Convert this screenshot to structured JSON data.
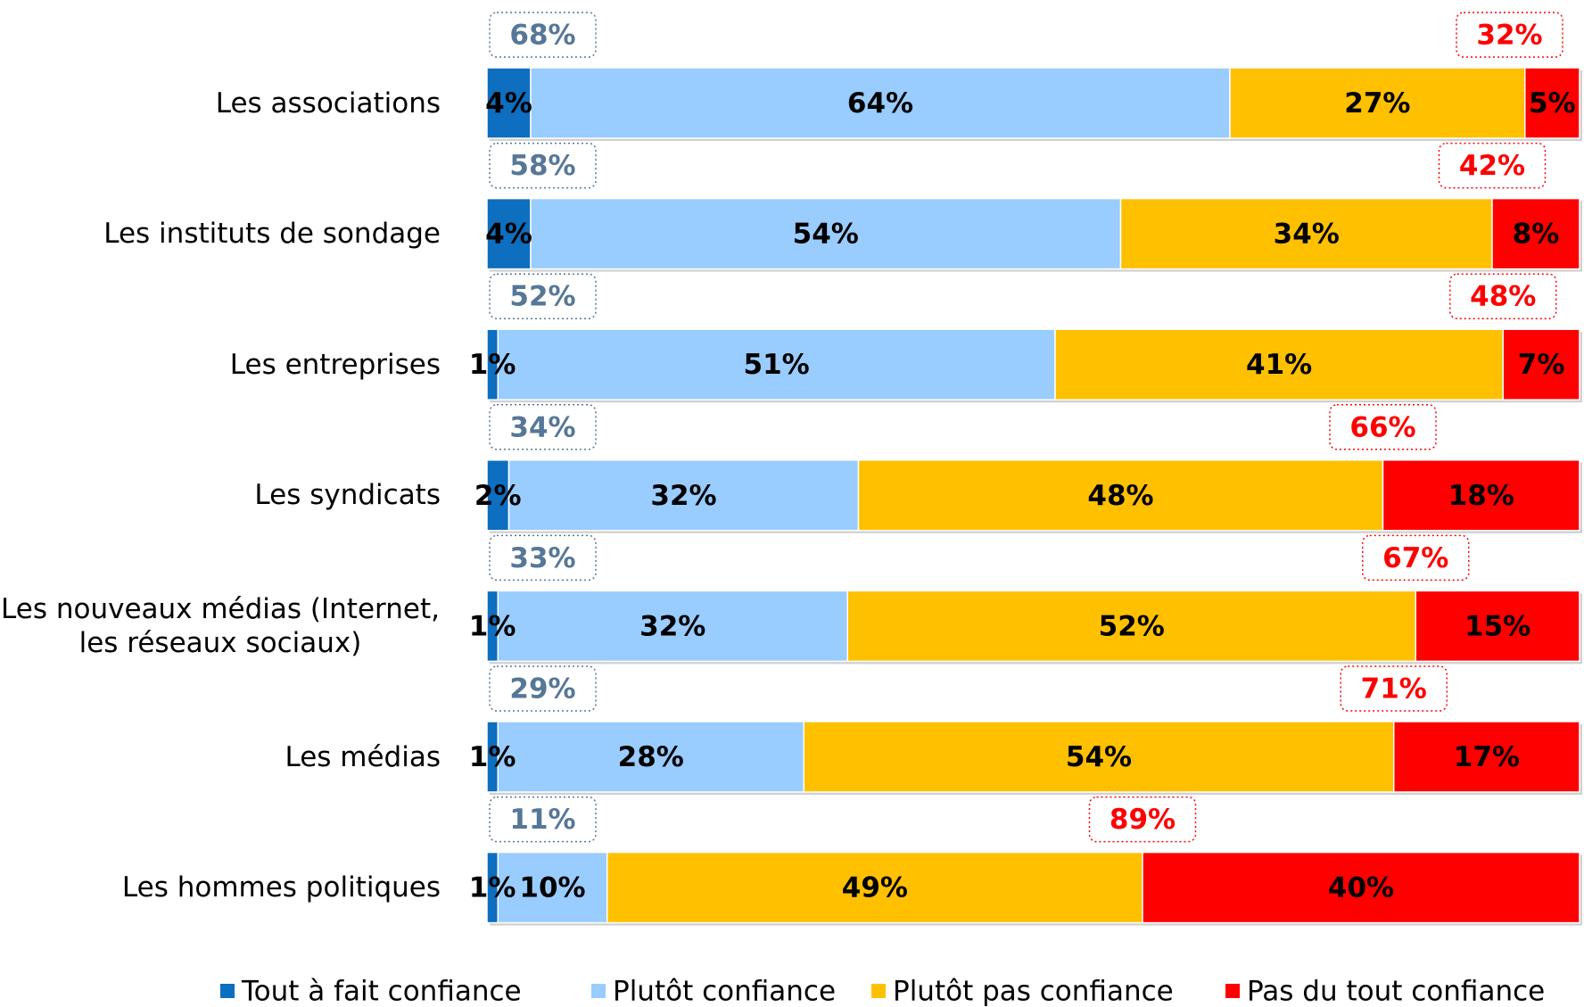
{
  "chart_data": {
    "type": "stacked_bar_horizontal",
    "categories": [
      "Les associations",
      "Les instituts de sondage",
      "Les entreprises",
      "Les syndicats",
      "Les nouveaux médias (Internet, les réseaux sociaux)",
      "Les médias",
      "Les hommes politiques"
    ],
    "series": [
      {
        "name": "Tout à fait confiance",
        "color": "#0e6ebf",
        "values": [
          4,
          4,
          1,
          2,
          1,
          1,
          1
        ],
        "value_labels": [
          "4%",
          "4%",
          "1%",
          "2%",
          "1%",
          "1%",
          "1%"
        ]
      },
      {
        "name": "Plutôt confiance",
        "color": "#99ccff",
        "values": [
          64,
          54,
          51,
          32,
          32,
          28,
          10
        ],
        "value_labels": [
          "64%",
          "54%",
          "51%",
          "32%",
          "32%",
          "28%",
          "10%"
        ]
      },
      {
        "name": "Plutôt pas confiance",
        "color": "#ffc000",
        "values": [
          27,
          34,
          41,
          48,
          52,
          54,
          49
        ],
        "value_labels": [
          "27%",
          "34%",
          "41%",
          "48%",
          "52%",
          "54%",
          "49%"
        ]
      },
      {
        "name": "Pas du tout confiance",
        "color": "#ff0000",
        "values": [
          5,
          8,
          7,
          18,
          15,
          17,
          40
        ],
        "value_labels": [
          "5%",
          "8%",
          "7%",
          "18%",
          "15%",
          "17%",
          "40%"
        ]
      }
    ],
    "totals_confiance": {
      "color": "#567797",
      "values": [
        68,
        58,
        52,
        34,
        33,
        29,
        11
      ],
      "value_labels": [
        "68%",
        "58%",
        "52%",
        "34%",
        "33%",
        "29%",
        "11%"
      ]
    },
    "totals_defiance": {
      "color": "#ff0000",
      "values": [
        32,
        42,
        48,
        66,
        67,
        71,
        89
      ],
      "value_labels": [
        "32%",
        "42%",
        "48%",
        "66%",
        "67%",
        "71%",
        "89%"
      ]
    },
    "legend": "bottom"
  }
}
